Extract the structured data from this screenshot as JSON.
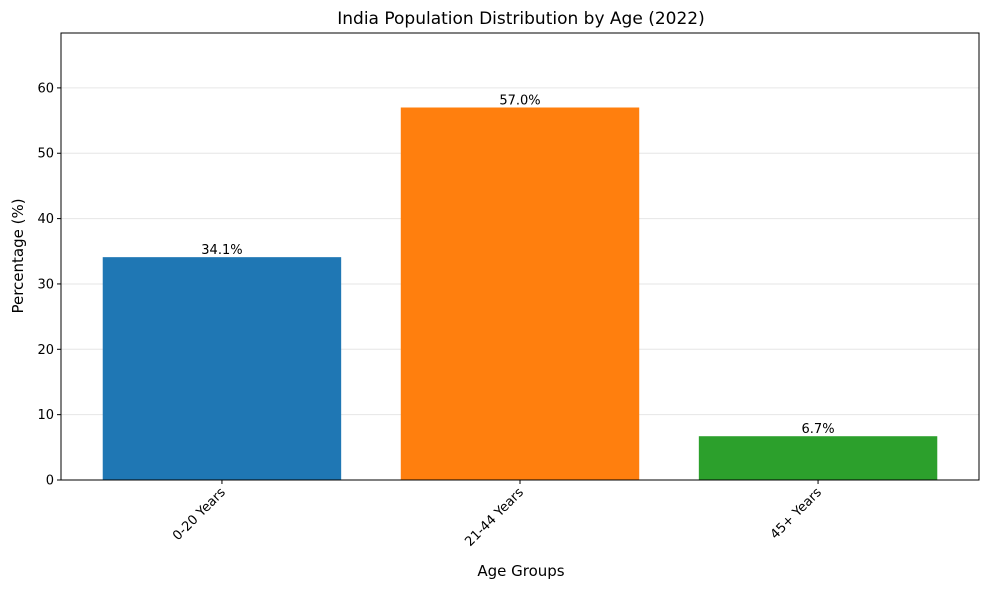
{
  "chart_data": {
    "type": "bar",
    "title": "India Population Distribution by Age (2022)",
    "xlabel": "Age Groups",
    "ylabel": "Percentage (%)",
    "categories": [
      "0-20 Years",
      "21-44 Years",
      "45+ Years"
    ],
    "values": [
      34.1,
      57.0,
      6.7
    ],
    "data_labels": [
      "34.1%",
      "57.0%",
      "6.7%"
    ],
    "colors": [
      "#1f77b4",
      "#ff7f0e",
      "#2ca02c"
    ],
    "ylim": [
      0,
      68.4
    ],
    "yticks": [
      0,
      10,
      20,
      30,
      40,
      50,
      60
    ],
    "grid": "horizontal",
    "legend": "none"
  }
}
